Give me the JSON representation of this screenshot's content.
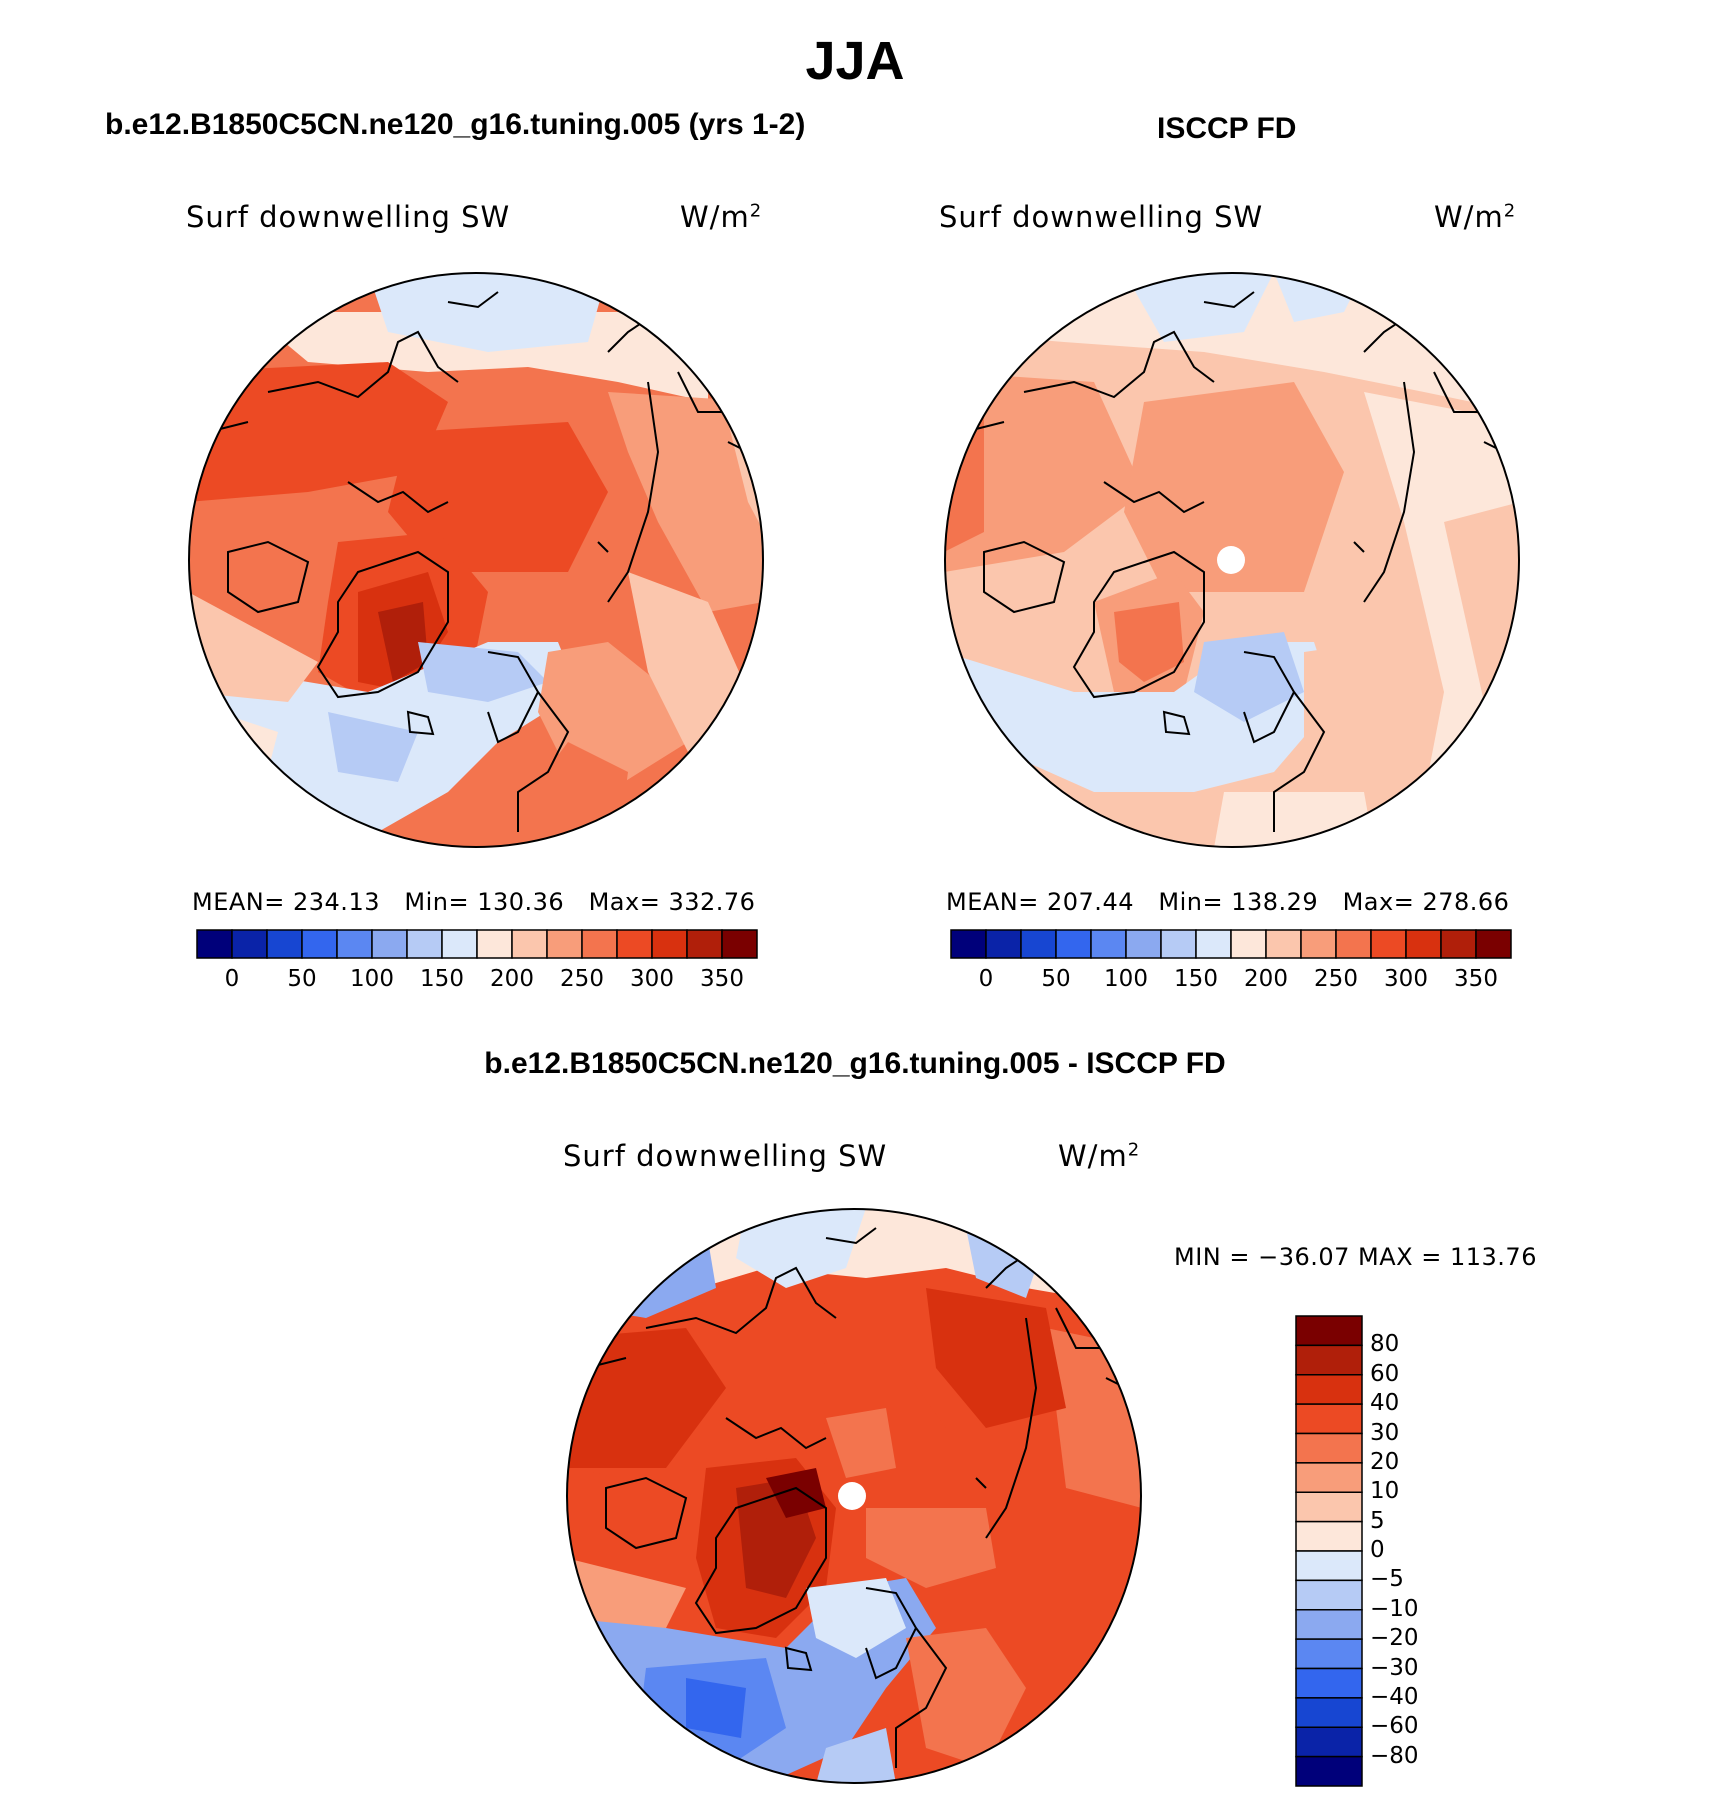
{
  "figure": {
    "title": "JJA",
    "panels": [
      {
        "title": "b.e12.B1850C5CN.ne120_g16.tuning.005 (yrs 1-2)",
        "variable": "Surf downwelling SW",
        "units": "W/m",
        "units_sup": "2",
        "stats": {
          "mean_label": "MEAN=",
          "mean": "234.13",
          "min_label": "Min=",
          "min": "130.36",
          "max_label": "Max=",
          "max": "332.76"
        }
      },
      {
        "title": "ISCCP FD",
        "variable": "Surf downwelling SW",
        "units": "W/m",
        "units_sup": "2",
        "stats": {
          "mean_label": "MEAN=",
          "mean": "207.44",
          "min_label": "Min=",
          "min": "138.29",
          "max_label": "Max=",
          "max": "278.66"
        }
      },
      {
        "title": "b.e12.B1850C5CN.ne120_g16.tuning.005 - ISCCP FD",
        "variable": "Surf downwelling SW",
        "units": "W/m",
        "units_sup": "2",
        "stats_text": "MIN = −36.07 MAX = 113.76"
      }
    ]
  },
  "chart_data": [
    {
      "type": "heatmap",
      "title": "b.e12.B1850C5CN.ne120_g16.tuning.005 (yrs 1-2)",
      "projection": "north polar stereographic",
      "field": "Surf downwelling SW",
      "units": "W/m2",
      "mean": 234.13,
      "min": 130.36,
      "max": 332.76,
      "colorbar": {
        "tick_labels": [
          "0",
          "50",
          "100",
          "150",
          "200",
          "250",
          "300",
          "350"
        ],
        "colors": [
          "#00007a",
          "#0a23a8",
          "#1746d2",
          "#3366ee",
          "#5b87f2",
          "#8ba9f0",
          "#b6cbf5",
          "#dbe8fa",
          "#fde7da",
          "#fbc6ad",
          "#f89d7a",
          "#f3744e",
          "#ec4a24",
          "#d8310f",
          "#b01f0a",
          "#7a0000"
        ]
      }
    },
    {
      "type": "heatmap",
      "title": "ISCCP FD",
      "projection": "north polar stereographic",
      "field": "Surf downwelling SW",
      "units": "W/m2",
      "mean": 207.44,
      "min": 138.29,
      "max": 278.66,
      "colorbar": {
        "tick_labels": [
          "0",
          "50",
          "100",
          "150",
          "200",
          "250",
          "300",
          "350"
        ],
        "colors": [
          "#00007a",
          "#0a23a8",
          "#1746d2",
          "#3366ee",
          "#5b87f2",
          "#8ba9f0",
          "#b6cbf5",
          "#dbe8fa",
          "#fde7da",
          "#fbc6ad",
          "#f89d7a",
          "#f3744e",
          "#ec4a24",
          "#d8310f",
          "#b01f0a",
          "#7a0000"
        ]
      }
    },
    {
      "type": "heatmap",
      "title": "b.e12.B1850C5CN.ne120_g16.tuning.005 - ISCCP FD",
      "projection": "north polar stereographic",
      "field": "Surf downwelling SW",
      "units": "W/m2",
      "min": -36.07,
      "max": 113.76,
      "colorbar": {
        "orientation": "vertical",
        "tick_labels": [
          "80",
          "60",
          "40",
          "30",
          "20",
          "10",
          "5",
          "0",
          "−5",
          "−10",
          "−20",
          "−30",
          "−40",
          "−60",
          "−80"
        ],
        "colors": [
          "#7a0000",
          "#b01f0a",
          "#d8310f",
          "#ec4a24",
          "#f3744e",
          "#f89d7a",
          "#fbc6ad",
          "#fde7da",
          "#dbe8fa",
          "#b6cbf5",
          "#8ba9f0",
          "#5b87f2",
          "#3366ee",
          "#1746d2",
          "#0a23a8",
          "#00007a"
        ]
      }
    }
  ]
}
